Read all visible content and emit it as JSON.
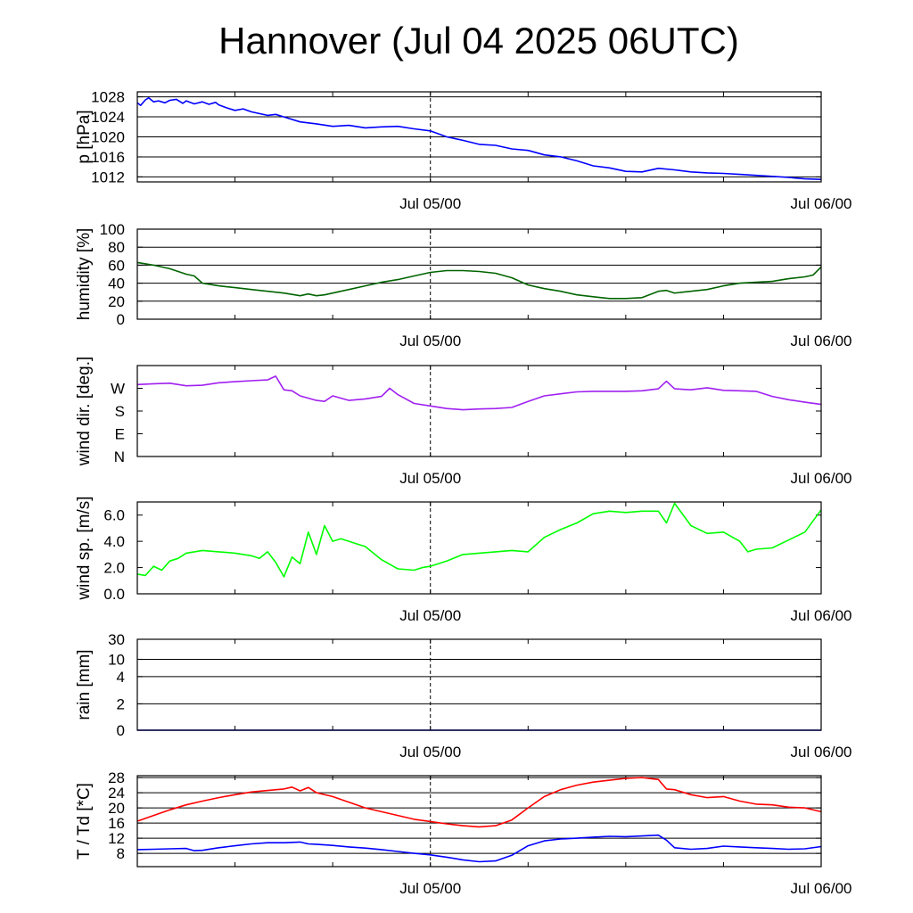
{
  "title": "Hannover (Jul 04 2025 06UTC)",
  "colors": {
    "pressure": "#0000ff",
    "humidity": "#006400",
    "wind_dir": "#a020f0",
    "wind_speed": "#00ff00",
    "rain": "#0000ff",
    "temperature": "#ff0000",
    "dewpoint": "#0000ff"
  },
  "chart_data": [
    {
      "type": "line",
      "ylabel": "p [hPa]",
      "x_tick_labels": [
        {
          "x": 18,
          "label": "Jul 05/00"
        },
        {
          "x": 42,
          "label": "Jul 06/00"
        }
      ],
      "xlim": [
        0,
        42
      ],
      "ylim": [
        1011,
        1029
      ],
      "y_ticks": [
        1012,
        1016,
        1020,
        1024,
        1028
      ],
      "y_tick_labels": [
        "1012",
        "1016",
        "1020",
        "1024",
        "1028"
      ],
      "grid": true,
      "series": [
        {
          "color": "pressure",
          "x": [
            0,
            0.2,
            0.5,
            0.7,
            1,
            1.3,
            1.7,
            2,
            2.4,
            2.8,
            3,
            3.5,
            4,
            4.4,
            4.8,
            5,
            5.5,
            6,
            6.5,
            7,
            8,
            8.5,
            9,
            10,
            11,
            12,
            13,
            14,
            15,
            16,
            17,
            18,
            19,
            20,
            21,
            22,
            23,
            24,
            25,
            26,
            27,
            28,
            29,
            30,
            31,
            32,
            33,
            34,
            35,
            36,
            37,
            38,
            39,
            40,
            41,
            42
          ],
          "y": [
            1026.8,
            1026.3,
            1027.4,
            1027.8,
            1027,
            1027.2,
            1026.8,
            1027.3,
            1027.5,
            1026.7,
            1027.2,
            1026.6,
            1027,
            1026.5,
            1026.9,
            1026.4,
            1025.8,
            1025.3,
            1025.6,
            1025,
            1024.3,
            1024.5,
            1024,
            1023,
            1022.6,
            1022.1,
            1022.3,
            1021.8,
            1022,
            1022.1,
            1021.6,
            1021.2,
            1020,
            1019.3,
            1018.5,
            1018.3,
            1017.6,
            1017.3,
            1016.4,
            1016,
            1015.2,
            1014.2,
            1013.8,
            1013.1,
            1013,
            1013.7,
            1013.4,
            1013,
            1012.8,
            1012.7,
            1012.5,
            1012.3,
            1012.1,
            1011.9,
            1011.6,
            1011.5
          ]
        }
      ]
    },
    {
      "type": "line",
      "ylabel": "humidity [%]",
      "x_tick_labels": [
        {
          "x": 18,
          "label": "Jul 05/00"
        },
        {
          "x": 42,
          "label": "Jul 06/00"
        }
      ],
      "xlim": [
        0,
        42
      ],
      "ylim": [
        0,
        100
      ],
      "y_ticks": [
        0,
        20,
        40,
        60,
        80,
        100
      ],
      "y_tick_labels": [
        "0",
        "20",
        "40",
        "60",
        "80",
        "100"
      ],
      "grid": true,
      "series": [
        {
          "color": "humidity",
          "x": [
            0,
            1,
            2,
            3,
            3.5,
            4,
            5,
            6,
            7,
            8,
            9,
            10,
            10.5,
            11,
            11.5,
            12,
            13,
            14,
            15,
            16,
            17,
            18,
            19,
            20,
            21,
            22,
            23,
            24,
            25,
            26,
            27,
            28,
            29,
            30,
            31,
            32,
            32.5,
            33,
            34,
            35,
            36,
            37,
            38,
            39,
            40,
            41,
            41.5,
            42
          ],
          "y": [
            63,
            60,
            56,
            50,
            48,
            40,
            37,
            35,
            33,
            31,
            29,
            26,
            28,
            26,
            27,
            29,
            33,
            37,
            41,
            44,
            48,
            52,
            54,
            54,
            53,
            51,
            46,
            38,
            34,
            31,
            27,
            25,
            23,
            23,
            24,
            31,
            32,
            29,
            31,
            33,
            37,
            40,
            41,
            42,
            45,
            47,
            49,
            58
          ]
        }
      ]
    },
    {
      "type": "line",
      "ylabel": "wind dir. [deg.]",
      "x_tick_labels": [
        {
          "x": 18,
          "label": "Jul 05/00"
        },
        {
          "x": 42,
          "label": "Jul 06/00"
        }
      ],
      "xlim": [
        0,
        42
      ],
      "ylim": [
        0,
        360
      ],
      "y_ticks": [
        0,
        90,
        180,
        270
      ],
      "y_tick_labels": [
        "N",
        "E",
        "S",
        "W"
      ],
      "grid": false,
      "series": [
        {
          "color": "wind_dir",
          "x": [
            0,
            1,
            2,
            3,
            4,
            5,
            6,
            7,
            8,
            8.5,
            9,
            9.5,
            10,
            11,
            11.5,
            12,
            13,
            14,
            15,
            15.5,
            16,
            17,
            18,
            19,
            20,
            21,
            22,
            23,
            24,
            25,
            26,
            27,
            28,
            29,
            30,
            31,
            32,
            32.5,
            33,
            34,
            35,
            36,
            37,
            38,
            39,
            40,
            41,
            42
          ],
          "y": [
            285,
            288,
            290,
            280,
            282,
            292,
            296,
            300,
            303,
            318,
            264,
            260,
            240,
            222,
            218,
            240,
            222,
            228,
            238,
            270,
            245,
            210,
            200,
            190,
            185,
            188,
            190,
            194,
            218,
            240,
            248,
            256,
            258,
            258,
            258,
            260,
            268,
            298,
            268,
            264,
            272,
            262,
            260,
            258,
            238,
            225,
            215,
            206
          ]
        }
      ]
    },
    {
      "type": "line",
      "ylabel": "wind sp. [m/s]",
      "x_tick_labels": [
        {
          "x": 18,
          "label": "Jul 05/00"
        },
        {
          "x": 42,
          "label": "Jul 06/00"
        }
      ],
      "xlim": [
        0,
        42
      ],
      "ylim": [
        0,
        7
      ],
      "y_ticks": [
        0,
        2,
        4,
        6
      ],
      "y_tick_labels": [
        "0.0",
        "2.0",
        "4.0",
        "6.0"
      ],
      "grid": false,
      "series": [
        {
          "color": "wind_speed",
          "x": [
            0,
            0.5,
            1,
            1.5,
            2,
            2.5,
            3,
            4,
            5,
            6,
            7,
            7.5,
            8,
            8.5,
            9,
            9.5,
            10,
            10.5,
            11,
            11.5,
            12,
            12.5,
            13,
            13.5,
            14,
            15,
            16,
            17,
            17.5,
            18,
            19,
            20,
            21,
            22,
            23,
            24,
            25,
            26,
            27,
            28,
            29,
            30,
            31,
            32,
            32.5,
            33,
            34,
            35,
            36,
            37,
            37.5,
            38,
            39,
            40,
            41,
            42
          ],
          "y": [
            1.5,
            1.4,
            2.1,
            1.8,
            2.5,
            2.7,
            3.1,
            3.3,
            3.2,
            3.1,
            2.9,
            2.7,
            3.2,
            2.4,
            1.3,
            2.8,
            2.3,
            4.7,
            3,
            5.2,
            4,
            4.2,
            4,
            3.8,
            3.6,
            2.6,
            1.9,
            1.8,
            2,
            2.1,
            2.5,
            3,
            3.1,
            3.2,
            3.3,
            3.2,
            4.3,
            4.9,
            5.4,
            6.1,
            6.3,
            6.2,
            6.3,
            6.3,
            5.4,
            6.9,
            5.2,
            4.6,
            4.7,
            4,
            3.2,
            3.4,
            3.5,
            4.1,
            4.7,
            6.4
          ]
        }
      ]
    },
    {
      "type": "line",
      "ylabel": "rain [mm]",
      "x_tick_labels": [
        {
          "x": 18,
          "label": "Jul 05/00"
        },
        {
          "x": 42,
          "label": "Jul 06/00"
        }
      ],
      "xlim": [
        0,
        42
      ],
      "y_ticks": [
        0,
        2,
        4,
        10,
        30
      ],
      "y_tick_labels": [
        "0",
        "2",
        "4",
        "10",
        "30"
      ],
      "grid": true,
      "series": [
        {
          "color": "rain",
          "x": [
            0,
            42
          ],
          "y": [
            0,
            0
          ]
        }
      ]
    },
    {
      "type": "line",
      "ylabel": "T / Td [*C]",
      "x_tick_labels": [
        {
          "x": 18,
          "label": "Jul 05/00"
        },
        {
          "x": 42,
          "label": "Jul 06/00"
        }
      ],
      "xlim": [
        0,
        42
      ],
      "ylim": [
        4.5,
        28.5
      ],
      "y_ticks": [
        8,
        12,
        16,
        20,
        24,
        28
      ],
      "y_tick_labels": [
        "8",
        "12",
        "16",
        "20",
        "24",
        "28"
      ],
      "grid": true,
      "series": [
        {
          "color": "temperature",
          "x": [
            0,
            1,
            2,
            3,
            4,
            5,
            6,
            7,
            8,
            9,
            9.5,
            10,
            10.5,
            11,
            12,
            13,
            14,
            15,
            16,
            17,
            18,
            19,
            20,
            21,
            22,
            23,
            24,
            25,
            26,
            27,
            28,
            29,
            30,
            31,
            32,
            32.5,
            33,
            34,
            35,
            36,
            37,
            38,
            39,
            40,
            41,
            42
          ],
          "y": [
            16.5,
            18,
            19.5,
            20.8,
            21.8,
            22.7,
            23.5,
            24.2,
            24.6,
            25,
            25.5,
            24.5,
            25.4,
            24,
            23,
            21.5,
            20,
            19,
            18,
            17,
            16.4,
            15.8,
            15.3,
            15,
            15.3,
            16.8,
            20,
            23,
            24.8,
            26,
            26.8,
            27.3,
            27.8,
            28,
            27.5,
            25,
            24.8,
            23.5,
            22.7,
            23,
            21.8,
            21,
            20.8,
            20.2,
            20,
            19
          ]
        },
        {
          "color": "dewpoint",
          "x": [
            0,
            1,
            2,
            3,
            3.5,
            4,
            5,
            6,
            7,
            8,
            9,
            10,
            10.5,
            11,
            12,
            13,
            14,
            15,
            16,
            17,
            18,
            19,
            20,
            21,
            22,
            23,
            24,
            25,
            26,
            27,
            28,
            29,
            30,
            31,
            32,
            32.5,
            33,
            34,
            35,
            36,
            37,
            38,
            39,
            40,
            41,
            42
          ],
          "y": [
            9,
            9.1,
            9.2,
            9.3,
            8.7,
            8.8,
            9.5,
            10,
            10.5,
            10.8,
            10.8,
            11,
            10.5,
            10.4,
            10.1,
            9.7,
            9.4,
            9,
            8.5,
            8,
            7.6,
            7,
            6.3,
            5.8,
            6,
            7.5,
            10,
            11.3,
            11.8,
            12,
            12.3,
            12.5,
            12.4,
            12.6,
            12.8,
            11.5,
            9.5,
            9.1,
            9.3,
            9.9,
            9.7,
            9.5,
            9.3,
            9.1,
            9.2,
            9.8
          ]
        }
      ]
    }
  ]
}
